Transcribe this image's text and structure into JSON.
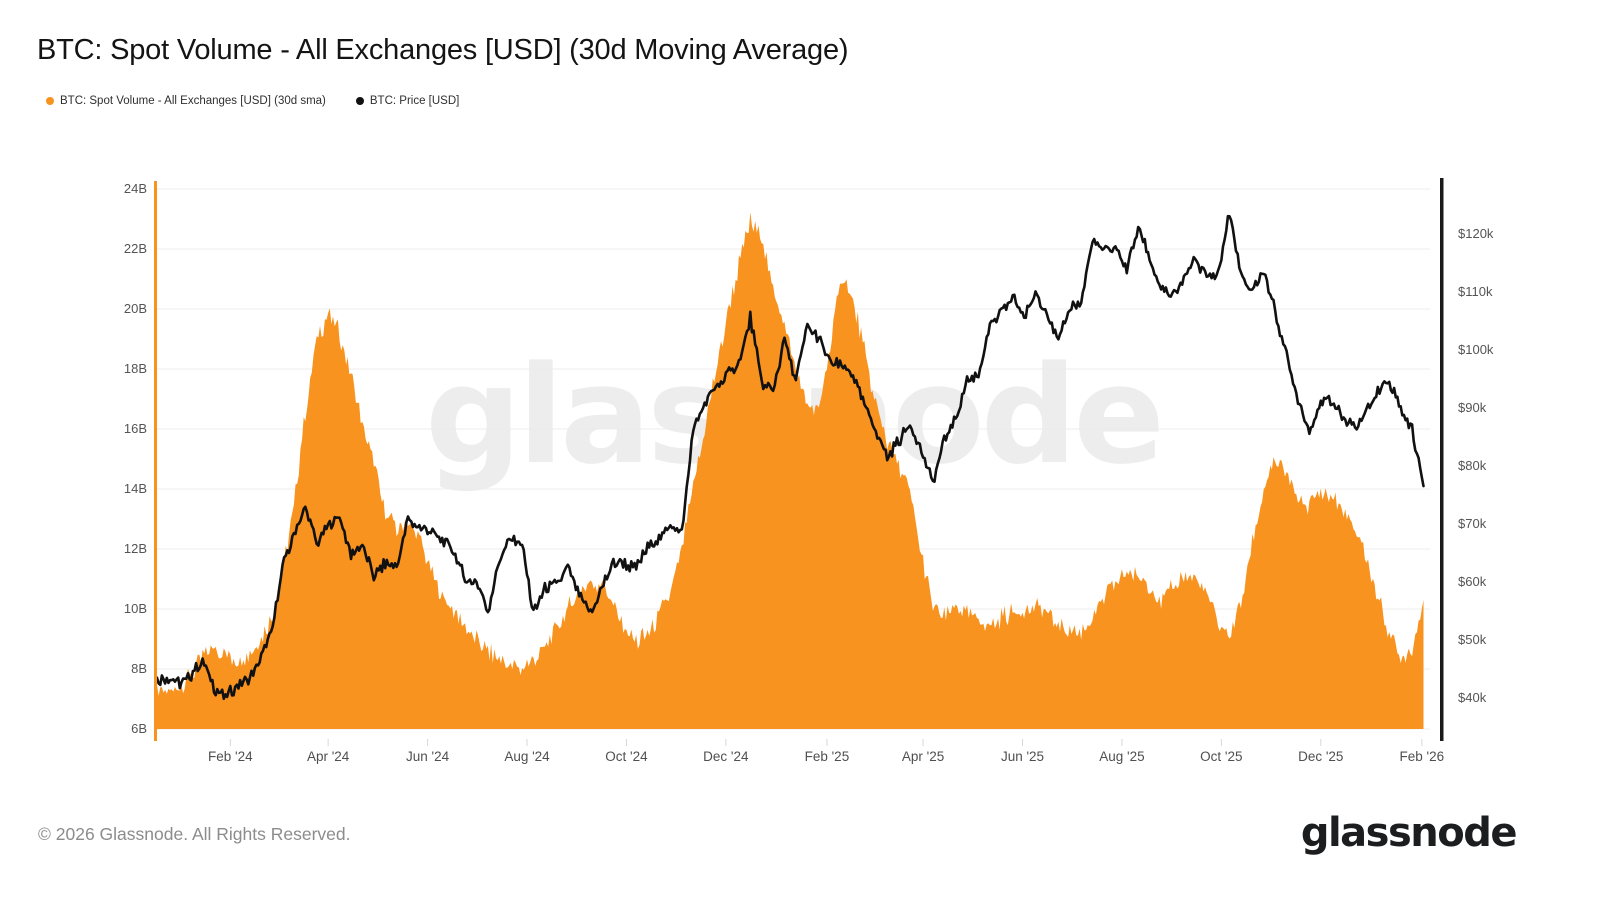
{
  "watermark": "glassnode",
  "footer": {
    "copyright": "© 2026 Glassnode. All Rights Reserved.",
    "brand": "glassnode"
  },
  "chart_data": {
    "type": "area+line",
    "title": "BTC: Spot Volume - All Exchanges [USD] (30d Moving Average)",
    "legend_position": "top-left",
    "grid": "horizontal",
    "start_date": "2023-12-18",
    "end_date": "2026-02-06",
    "interval_days": 7,
    "series": [
      {
        "name": "BTC: Spot Volume - All Exchanges [USD] (30d sma)",
        "style": "area",
        "axis": "left",
        "color": "#f7931e",
        "unit": "billion USD",
        "values": [
          7.3,
          7.2,
          7.5,
          7.8,
          8.4,
          8.7,
          8.5,
          8.3,
          8.5,
          8.9,
          9.6,
          11.2,
          13.5,
          16.5,
          19.0,
          19.8,
          19.2,
          17.8,
          16.2,
          14.8,
          13.2,
          12.7,
          12.9,
          12.3,
          11.3,
          10.4,
          9.9,
          9.4,
          9.0,
          8.6,
          8.3,
          8.1,
          8.0,
          8.3,
          8.8,
          9.3,
          10.0,
          10.6,
          10.8,
          10.9,
          10.0,
          9.3,
          8.9,
          9.2,
          9.8,
          10.6,
          12.0,
          14.0,
          16.0,
          18.0,
          19.8,
          21.5,
          22.9,
          22.4,
          20.6,
          19.5,
          18.0,
          16.8,
          16.5,
          18.8,
          21.1,
          20.3,
          18.6,
          16.8,
          15.6,
          14.8,
          13.8,
          11.8,
          10.1,
          9.7,
          10.1,
          9.9,
          9.6,
          9.4,
          9.7,
          9.9,
          10.0,
          10.1,
          9.9,
          9.4,
          9.3,
          9.2,
          9.6,
          10.3,
          10.9,
          11.2,
          11.1,
          10.8,
          10.2,
          10.7,
          11.1,
          11.0,
          10.6,
          9.6,
          9.1,
          10.2,
          12.2,
          14.0,
          14.9,
          14.6,
          13.6,
          13.5,
          13.9,
          13.7,
          13.2,
          12.7,
          11.7,
          10.4,
          9.2,
          8.4,
          8.6,
          10.3
        ]
      },
      {
        "name": "BTC: Price [USD]",
        "style": "line",
        "axis": "right",
        "color": "#111111",
        "unit": "thousand USD",
        "values": [
          42.8,
          43.5,
          42.6,
          44.0,
          46.4,
          41.8,
          40.0,
          42.3,
          43.1,
          46.5,
          50.8,
          62.5,
          68.3,
          72.8,
          66.5,
          69.8,
          71.2,
          64.5,
          66.5,
          61.0,
          63.2,
          62.5,
          70.8,
          69.2,
          69.0,
          67.2,
          65.3,
          60.5,
          60.0,
          55.0,
          63.5,
          67.3,
          66.5,
          54.5,
          59.2,
          59.5,
          62.8,
          57.5,
          54.5,
          59.0,
          63.5,
          63.2,
          62.3,
          66.0,
          67.3,
          69.8,
          68.5,
          86.5,
          90.5,
          93.5,
          95.8,
          97.5,
          105.5,
          94.5,
          92.8,
          101.8,
          94.5,
          104.0,
          102.0,
          97.8,
          97.2,
          95.8,
          90.5,
          86.0,
          81.5,
          84.2,
          87.3,
          82.8,
          77.0,
          84.5,
          88.0,
          94.8,
          95.5,
          103.8,
          106.2,
          109.2,
          105.5,
          109.8,
          106.5,
          101.2,
          107.3,
          108.0,
          119.0,
          117.2,
          117.8,
          113.8,
          121.2,
          115.8,
          110.3,
          109.2,
          112.2,
          115.8,
          112.5,
          113.0,
          123.5,
          112.8,
          110.0,
          113.8,
          106.5,
          99.0,
          91.5,
          85.8,
          90.8,
          91.5,
          88.0,
          86.5,
          89.2,
          93.2,
          94.8,
          90.0,
          86.2,
          76.5
        ]
      }
    ],
    "axes": {
      "left": {
        "range": [
          6,
          24
        ],
        "ticks": [
          {
            "label": "24B",
            "value": 24
          },
          {
            "label": "22B",
            "value": 22
          },
          {
            "label": "20B",
            "value": 20
          },
          {
            "label": "18B",
            "value": 18
          },
          {
            "label": "16B",
            "value": 16
          },
          {
            "label": "14B",
            "value": 14
          },
          {
            "label": "12B",
            "value": 12
          },
          {
            "label": "10B",
            "value": 10
          },
          {
            "label": "8B",
            "value": 8
          },
          {
            "label": "6B",
            "value": 6
          }
        ]
      },
      "right": {
        "range": [
          33.3,
          128.7
        ],
        "ticks": [
          {
            "label": "$120k",
            "value": 120
          },
          {
            "label": "$110k",
            "value": 110
          },
          {
            "label": "$100k",
            "value": 100
          },
          {
            "label": "$90k",
            "value": 90
          },
          {
            "label": "$80k",
            "value": 80
          },
          {
            "label": "$70k",
            "value": 70
          },
          {
            "label": "$60k",
            "value": 60
          },
          {
            "label": "$50k",
            "value": 50
          },
          {
            "label": "$40k",
            "value": 40
          }
        ]
      },
      "time": {
        "ticks": [
          {
            "label": "Feb '24",
            "date": "2024-02-01"
          },
          {
            "label": "Apr '24",
            "date": "2024-04-01"
          },
          {
            "label": "Jun '24",
            "date": "2024-06-01"
          },
          {
            "label": "Aug '24",
            "date": "2024-08-01"
          },
          {
            "label": "Oct '24",
            "date": "2024-10-01"
          },
          {
            "label": "Dec '24",
            "date": "2024-12-01"
          },
          {
            "label": "Feb '25",
            "date": "2025-02-01"
          },
          {
            "label": "Apr '25",
            "date": "2025-04-01"
          },
          {
            "label": "Jun '25",
            "date": "2025-06-01"
          },
          {
            "label": "Aug '25",
            "date": "2025-08-01"
          },
          {
            "label": "Oct '25",
            "date": "2025-10-01"
          },
          {
            "label": "Dec '25",
            "date": "2025-12-01"
          },
          {
            "label": "Feb '26",
            "date": "2026-02-01"
          }
        ]
      }
    }
  }
}
